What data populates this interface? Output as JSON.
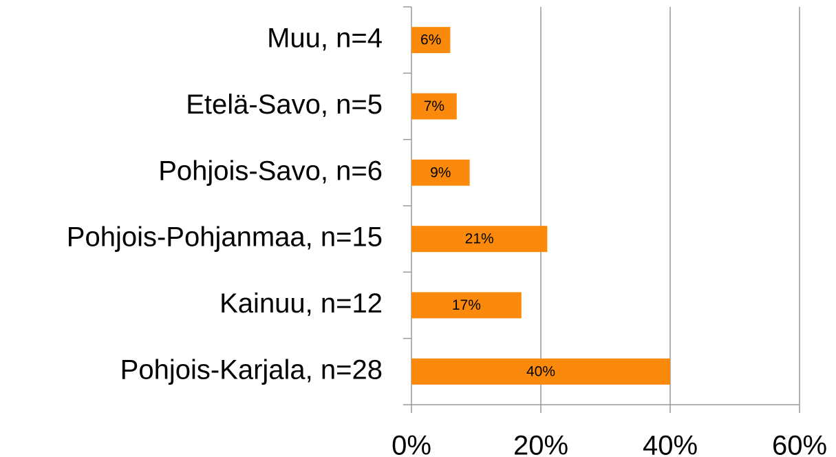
{
  "chart_data": {
    "type": "bar",
    "orientation": "horizontal",
    "categories": [
      "Muu, n=4",
      "Etelä-Savo, n=5",
      "Pohjois-Savo, n=6",
      "Pohjois-Pohjanmaa, n=15",
      "Kainuu, n=12",
      "Pohjois-Karjala, n=28"
    ],
    "values": [
      6,
      7,
      9,
      21,
      17,
      40
    ],
    "value_labels": [
      "6%",
      "7%",
      "9%",
      "21%",
      "17%",
      "40%"
    ],
    "color": "#fb8a0c",
    "xlim": [
      0,
      60
    ],
    "xticks": [
      {
        "value": 0,
        "label": "0%"
      },
      {
        "value": 20,
        "label": "20%"
      },
      {
        "value": 40,
        "label": "40%"
      },
      {
        "value": 60,
        "label": "60%"
      }
    ],
    "grid": true
  }
}
